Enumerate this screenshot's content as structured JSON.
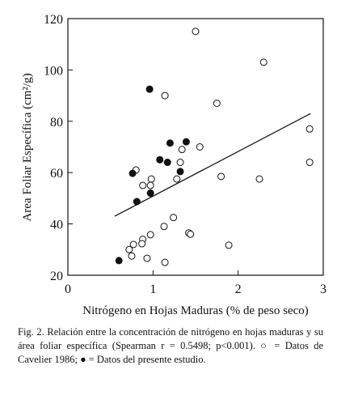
{
  "chart_data": {
    "type": "scatter",
    "xlabel": "Nitrógeno en Hojas Maduras (% de peso seco)",
    "ylabel": "Area Foliar Específica (cm²/g)",
    "caption": "Fig. 2. Relación entre la concentración de nitrógeno en hojas maduras y su área foliar específica (Spearman r = 0.5498; p<0.001). ○ = Datos de Cavelier 1986; ● = Datos del presente estudio.",
    "xlim": [
      0,
      3
    ],
    "xticks": [
      0,
      1,
      2,
      3
    ],
    "ylim": [
      20,
      120
    ],
    "yticks": [
      20,
      40,
      60,
      80,
      100,
      120
    ],
    "series": [
      {
        "marker": "open",
        "color": "#111111",
        "x": [
          1.5,
          2.3,
          1.14,
          1.75,
          2.84,
          1.55,
          1.34,
          1.32,
          2.84,
          0.8,
          1.8,
          1.28,
          2.25,
          0.98,
          0.88,
          0.97,
          1.24,
          1.13,
          1.42,
          1.44,
          0.97,
          0.88,
          0.87,
          0.77,
          0.72,
          0.75,
          0.93,
          1.14,
          1.89
        ],
        "values": [
          115,
          103,
          90,
          87,
          77,
          70,
          69,
          64,
          64,
          61,
          58.5,
          57.5,
          57.5,
          57.5,
          55,
          55,
          42.5,
          39,
          36.5,
          36,
          35.8,
          34,
          32.3,
          32,
          30,
          27.5,
          26.6,
          25,
          31.7
        ]
      },
      {
        "marker": "filled",
        "color": "#111111",
        "x": [
          0.96,
          1.2,
          1.39,
          1.08,
          1.17,
          0.76,
          1.32,
          0.97,
          0.81,
          0.6
        ],
        "values": [
          92.5,
          71.5,
          72,
          65,
          64,
          59.7,
          60.4,
          52,
          48.7,
          25.7
        ]
      }
    ],
    "trendline": {
      "x": [
        0.55,
        2.85
      ],
      "values": [
        43,
        83
      ]
    }
  }
}
